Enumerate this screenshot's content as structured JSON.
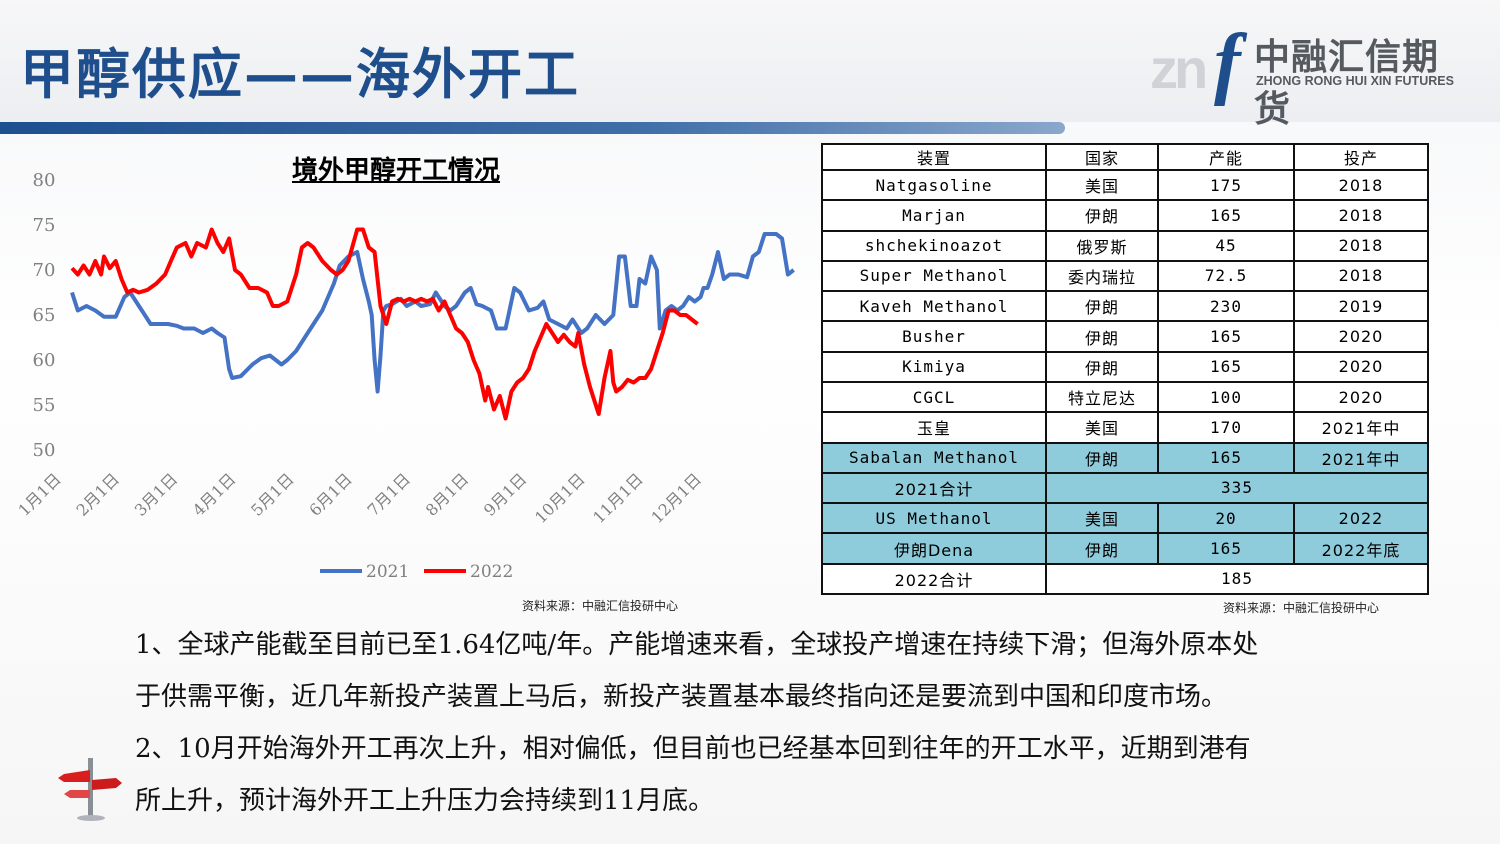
{
  "header": {
    "title": "甲醇供应——海外开工",
    "logo_zn": "zn",
    "logo_f": "f",
    "logo_cn": "中融汇信期货",
    "logo_en": "ZHONG RONG HUI XIN FUTURES"
  },
  "chart_data": {
    "type": "line",
    "title": "境外甲醇开工情况",
    "xlabel": "",
    "ylabel": "",
    "ylim": [
      50,
      80
    ],
    "yticks": [
      "80",
      "75",
      "70",
      "65",
      "60",
      "55",
      "50"
    ],
    "categories": [
      "1月1日",
      "2月1日",
      "3月1日",
      "4月1日",
      "5月1日",
      "6月1日",
      "7月1日",
      "8月1日",
      "9月1日",
      "10月1日",
      "11月1日",
      "12月1日"
    ],
    "legend_position": "bottom",
    "grid": false,
    "series": [
      {
        "name": "2021",
        "color": "#4472c4",
        "points": [
          [
            0.0,
            67.5
          ],
          [
            0.1,
            65.5
          ],
          [
            0.25,
            66
          ],
          [
            0.4,
            65.5
          ],
          [
            0.55,
            64.8
          ],
          [
            0.75,
            64.8
          ],
          [
            0.9,
            67
          ],
          [
            1.0,
            67.5
          ],
          [
            1.1,
            66.5
          ],
          [
            1.25,
            65
          ],
          [
            1.35,
            64
          ],
          [
            1.5,
            64
          ],
          [
            1.65,
            64
          ],
          [
            1.8,
            63.8
          ],
          [
            1.92,
            63.5
          ],
          [
            2.0,
            63.5
          ],
          [
            2.1,
            63.5
          ],
          [
            2.25,
            63
          ],
          [
            2.4,
            63.5
          ],
          [
            2.5,
            63
          ],
          [
            2.62,
            62.5
          ],
          [
            2.7,
            59
          ],
          [
            2.75,
            58
          ],
          [
            2.9,
            58.2
          ],
          [
            3.1,
            59.5
          ],
          [
            3.25,
            60.2
          ],
          [
            3.4,
            60.5
          ],
          [
            3.6,
            59.5
          ],
          [
            3.7,
            60
          ],
          [
            3.85,
            61
          ],
          [
            4.0,
            62.5
          ],
          [
            4.15,
            64
          ],
          [
            4.3,
            65.5
          ],
          [
            4.4,
            67
          ],
          [
            4.5,
            68.5
          ],
          [
            4.6,
            70.5
          ],
          [
            4.75,
            71.5
          ],
          [
            4.9,
            72
          ],
          [
            5.0,
            69
          ],
          [
            5.1,
            66.5
          ],
          [
            5.15,
            65
          ],
          [
            5.2,
            60
          ],
          [
            5.25,
            56.5
          ],
          [
            5.3,
            60.5
          ],
          [
            5.35,
            65.5
          ],
          [
            5.4,
            66
          ],
          [
            5.5,
            66.2
          ],
          [
            5.65,
            66.8
          ],
          [
            5.75,
            66
          ],
          [
            5.9,
            66.5
          ],
          [
            6.0,
            66
          ],
          [
            6.15,
            66.2
          ],
          [
            6.25,
            67.5
          ],
          [
            6.4,
            66
          ],
          [
            6.5,
            65.5
          ],
          [
            6.6,
            66
          ],
          [
            6.75,
            67.5
          ],
          [
            6.85,
            68
          ],
          [
            6.95,
            66.2
          ],
          [
            7.05,
            66
          ],
          [
            7.2,
            65.5
          ],
          [
            7.3,
            63.5
          ],
          [
            7.45,
            63.5
          ],
          [
            7.5,
            65
          ],
          [
            7.6,
            68
          ],
          [
            7.7,
            67.5
          ],
          [
            7.85,
            65.5
          ],
          [
            8.0,
            65.8
          ],
          [
            8.1,
            66.5
          ],
          [
            8.2,
            64.5
          ],
          [
            8.35,
            64
          ],
          [
            8.5,
            63.5
          ],
          [
            8.6,
            64.5
          ],
          [
            8.75,
            63
          ],
          [
            8.85,
            63.5
          ],
          [
            9.0,
            65
          ],
          [
            9.15,
            64
          ],
          [
            9.3,
            65
          ],
          [
            9.4,
            71.5
          ],
          [
            9.5,
            71.5
          ],
          [
            9.6,
            66
          ],
          [
            9.7,
            66
          ],
          [
            9.75,
            69
          ],
          [
            9.85,
            68.5
          ],
          [
            9.95,
            71.5
          ],
          [
            10.05,
            70
          ],
          [
            10.1,
            63.5
          ],
          [
            10.2,
            65.5
          ],
          [
            10.3,
            66
          ],
          [
            10.4,
            65.5
          ],
          [
            10.5,
            66
          ],
          [
            10.6,
            67
          ],
          [
            10.7,
            66.5
          ],
          [
            10.8,
            67
          ],
          [
            10.85,
            68
          ],
          [
            10.92,
            68
          ],
          [
            11.0,
            69.5
          ],
          [
            11.1,
            72
          ],
          [
            11.2,
            69
          ],
          [
            11.3,
            69.5
          ],
          [
            11.45,
            69.5
          ],
          [
            11.6,
            69.2
          ],
          [
            11.7,
            71.5
          ],
          [
            11.8,
            72
          ],
          [
            11.9,
            74
          ],
          [
            12.0,
            74
          ],
          [
            12.1,
            74
          ],
          [
            12.2,
            73.5
          ],
          [
            12.3,
            69.5
          ],
          [
            12.4,
            70
          ]
        ]
      },
      {
        "name": "2022",
        "color": "#ff0000",
        "points": [
          [
            0.0,
            70.2
          ],
          [
            0.1,
            69.5
          ],
          [
            0.2,
            70.5
          ],
          [
            0.3,
            69.5
          ],
          [
            0.4,
            71
          ],
          [
            0.5,
            69.5
          ],
          [
            0.55,
            71.5
          ],
          [
            0.65,
            70.2
          ],
          [
            0.75,
            71
          ],
          [
            0.85,
            69
          ],
          [
            0.95,
            67.5
          ],
          [
            1.05,
            67.8
          ],
          [
            1.15,
            67.5
          ],
          [
            1.3,
            67.8
          ],
          [
            1.45,
            68.5
          ],
          [
            1.6,
            69.5
          ],
          [
            1.7,
            71
          ],
          [
            1.8,
            72.5
          ],
          [
            1.95,
            73
          ],
          [
            2.05,
            71.5
          ],
          [
            2.15,
            73
          ],
          [
            2.3,
            72.5
          ],
          [
            2.4,
            74.5
          ],
          [
            2.5,
            73
          ],
          [
            2.6,
            72
          ],
          [
            2.7,
            73.5
          ],
          [
            2.8,
            70
          ],
          [
            2.9,
            69.5
          ],
          [
            3.05,
            68
          ],
          [
            3.2,
            68
          ],
          [
            3.35,
            67.5
          ],
          [
            3.45,
            66
          ],
          [
            3.55,
            66
          ],
          [
            3.7,
            66.5
          ],
          [
            3.85,
            69.5
          ],
          [
            3.95,
            72.5
          ],
          [
            4.05,
            73
          ],
          [
            4.15,
            72.5
          ],
          [
            4.3,
            71
          ],
          [
            4.45,
            70
          ],
          [
            4.55,
            69.5
          ],
          [
            4.65,
            70
          ],
          [
            4.75,
            71
          ],
          [
            4.9,
            74.5
          ],
          [
            5.0,
            74.5
          ],
          [
            5.1,
            72.5
          ],
          [
            5.2,
            72
          ],
          [
            5.3,
            66
          ],
          [
            5.4,
            64
          ],
          [
            5.5,
            66.5
          ],
          [
            5.6,
            66.8
          ],
          [
            5.7,
            66.5
          ],
          [
            5.8,
            66.8
          ],
          [
            5.9,
            66.5
          ],
          [
            6.0,
            66.8
          ],
          [
            6.1,
            66.5
          ],
          [
            6.2,
            66.8
          ],
          [
            6.3,
            65.5
          ],
          [
            6.4,
            66.5
          ],
          [
            6.5,
            65
          ],
          [
            6.6,
            63.5
          ],
          [
            6.7,
            63
          ],
          [
            6.8,
            62
          ],
          [
            6.9,
            60
          ],
          [
            7.0,
            58.5
          ],
          [
            7.05,
            57
          ],
          [
            7.1,
            55.5
          ],
          [
            7.15,
            57
          ],
          [
            7.25,
            54.5
          ],
          [
            7.35,
            56
          ],
          [
            7.45,
            53.5
          ],
          [
            7.5,
            55
          ],
          [
            7.55,
            56.5
          ],
          [
            7.65,
            57.5
          ],
          [
            7.75,
            58
          ],
          [
            7.85,
            59
          ],
          [
            7.95,
            61
          ],
          [
            8.05,
            62.5
          ],
          [
            8.15,
            64
          ],
          [
            8.25,
            63
          ],
          [
            8.35,
            62
          ],
          [
            8.45,
            62.8
          ],
          [
            8.55,
            62
          ],
          [
            8.65,
            61.5
          ],
          [
            8.7,
            63
          ],
          [
            8.8,
            59.5
          ],
          [
            8.9,
            57
          ],
          [
            9.0,
            55
          ],
          [
            9.05,
            54
          ],
          [
            9.15,
            58
          ],
          [
            9.25,
            61
          ],
          [
            9.3,
            57.5
          ],
          [
            9.35,
            56.5
          ],
          [
            9.45,
            57
          ],
          [
            9.55,
            57.8
          ],
          [
            9.65,
            57.5
          ],
          [
            9.75,
            58
          ],
          [
            9.85,
            58
          ],
          [
            9.95,
            59
          ],
          [
            10.05,
            61
          ],
          [
            10.15,
            63
          ],
          [
            10.25,
            65.5
          ],
          [
            10.35,
            65.5
          ],
          [
            10.45,
            65
          ],
          [
            10.55,
            65
          ],
          [
            10.65,
            64.5
          ],
          [
            10.75,
            64
          ]
        ]
      }
    ]
  },
  "chart_source": "资料来源：中融汇信投研中心",
  "table": {
    "headers": [
      "装置",
      "国家",
      "产能",
      "投产"
    ],
    "rows": [
      {
        "name": "Natgasoline",
        "country": "美国",
        "capacity": "175",
        "year": "2018",
        "highlight": false
      },
      {
        "name": "Marjan",
        "country": "伊朗",
        "capacity": "165",
        "year": "2018",
        "highlight": false
      },
      {
        "name": "shchekinoazot",
        "country": "俄罗斯",
        "capacity": "45",
        "year": "2018",
        "highlight": false
      },
      {
        "name": "Super Methanol",
        "country": "委内瑞拉",
        "capacity": "72.5",
        "year": "2018",
        "highlight": false
      },
      {
        "name": "Kaveh Methanol",
        "country": "伊朗",
        "capacity": "230",
        "year": "2019",
        "highlight": false
      },
      {
        "name": "Busher",
        "country": "伊朗",
        "capacity": "165",
        "year": "2020",
        "highlight": false
      },
      {
        "name": "Kimiya",
        "country": "伊朗",
        "capacity": "165",
        "year": "2020",
        "highlight": false
      },
      {
        "name": "CGCL",
        "country": "特立尼达",
        "capacity": "100",
        "year": "2020",
        "highlight": false
      },
      {
        "name": "玉皇",
        "country": "美国",
        "capacity": "170",
        "year": "2021年中",
        "highlight": false
      },
      {
        "name": "Sabalan Methanol",
        "country": "伊朗",
        "capacity": "165",
        "year": "2021年中",
        "highlight": true
      }
    ],
    "total_2021": {
      "label": "2021合计",
      "value": "335"
    },
    "rows_2022": [
      {
        "name": "US Methanol",
        "country": "美国",
        "capacity": "20",
        "year": "2022",
        "highlight": true
      },
      {
        "name": "伊朗Dena",
        "country": "伊朗",
        "capacity": "165",
        "year": "2022年底",
        "highlight": true
      }
    ],
    "total_2022": {
      "label": "2022合计",
      "value": "185"
    },
    "source": "资料来源：中融汇信投研中心"
  },
  "text": {
    "line1": "1、全球产能截至目前已至1.64亿吨/年。产能增速来看，全球投产增速在持续下滑；但海外原本处",
    "line2": "于供需平衡，近几年新投产装置上马后，新投产装置基本最终指向还是要流到中国和印度市场。",
    "line3": "2、10月开始海外开工再次上升，相对偏低，但目前也已经基本回到往年的开工水平，近期到港有",
    "line4": "所上升，预计海外开工上升压力会持续到11月底。"
  }
}
